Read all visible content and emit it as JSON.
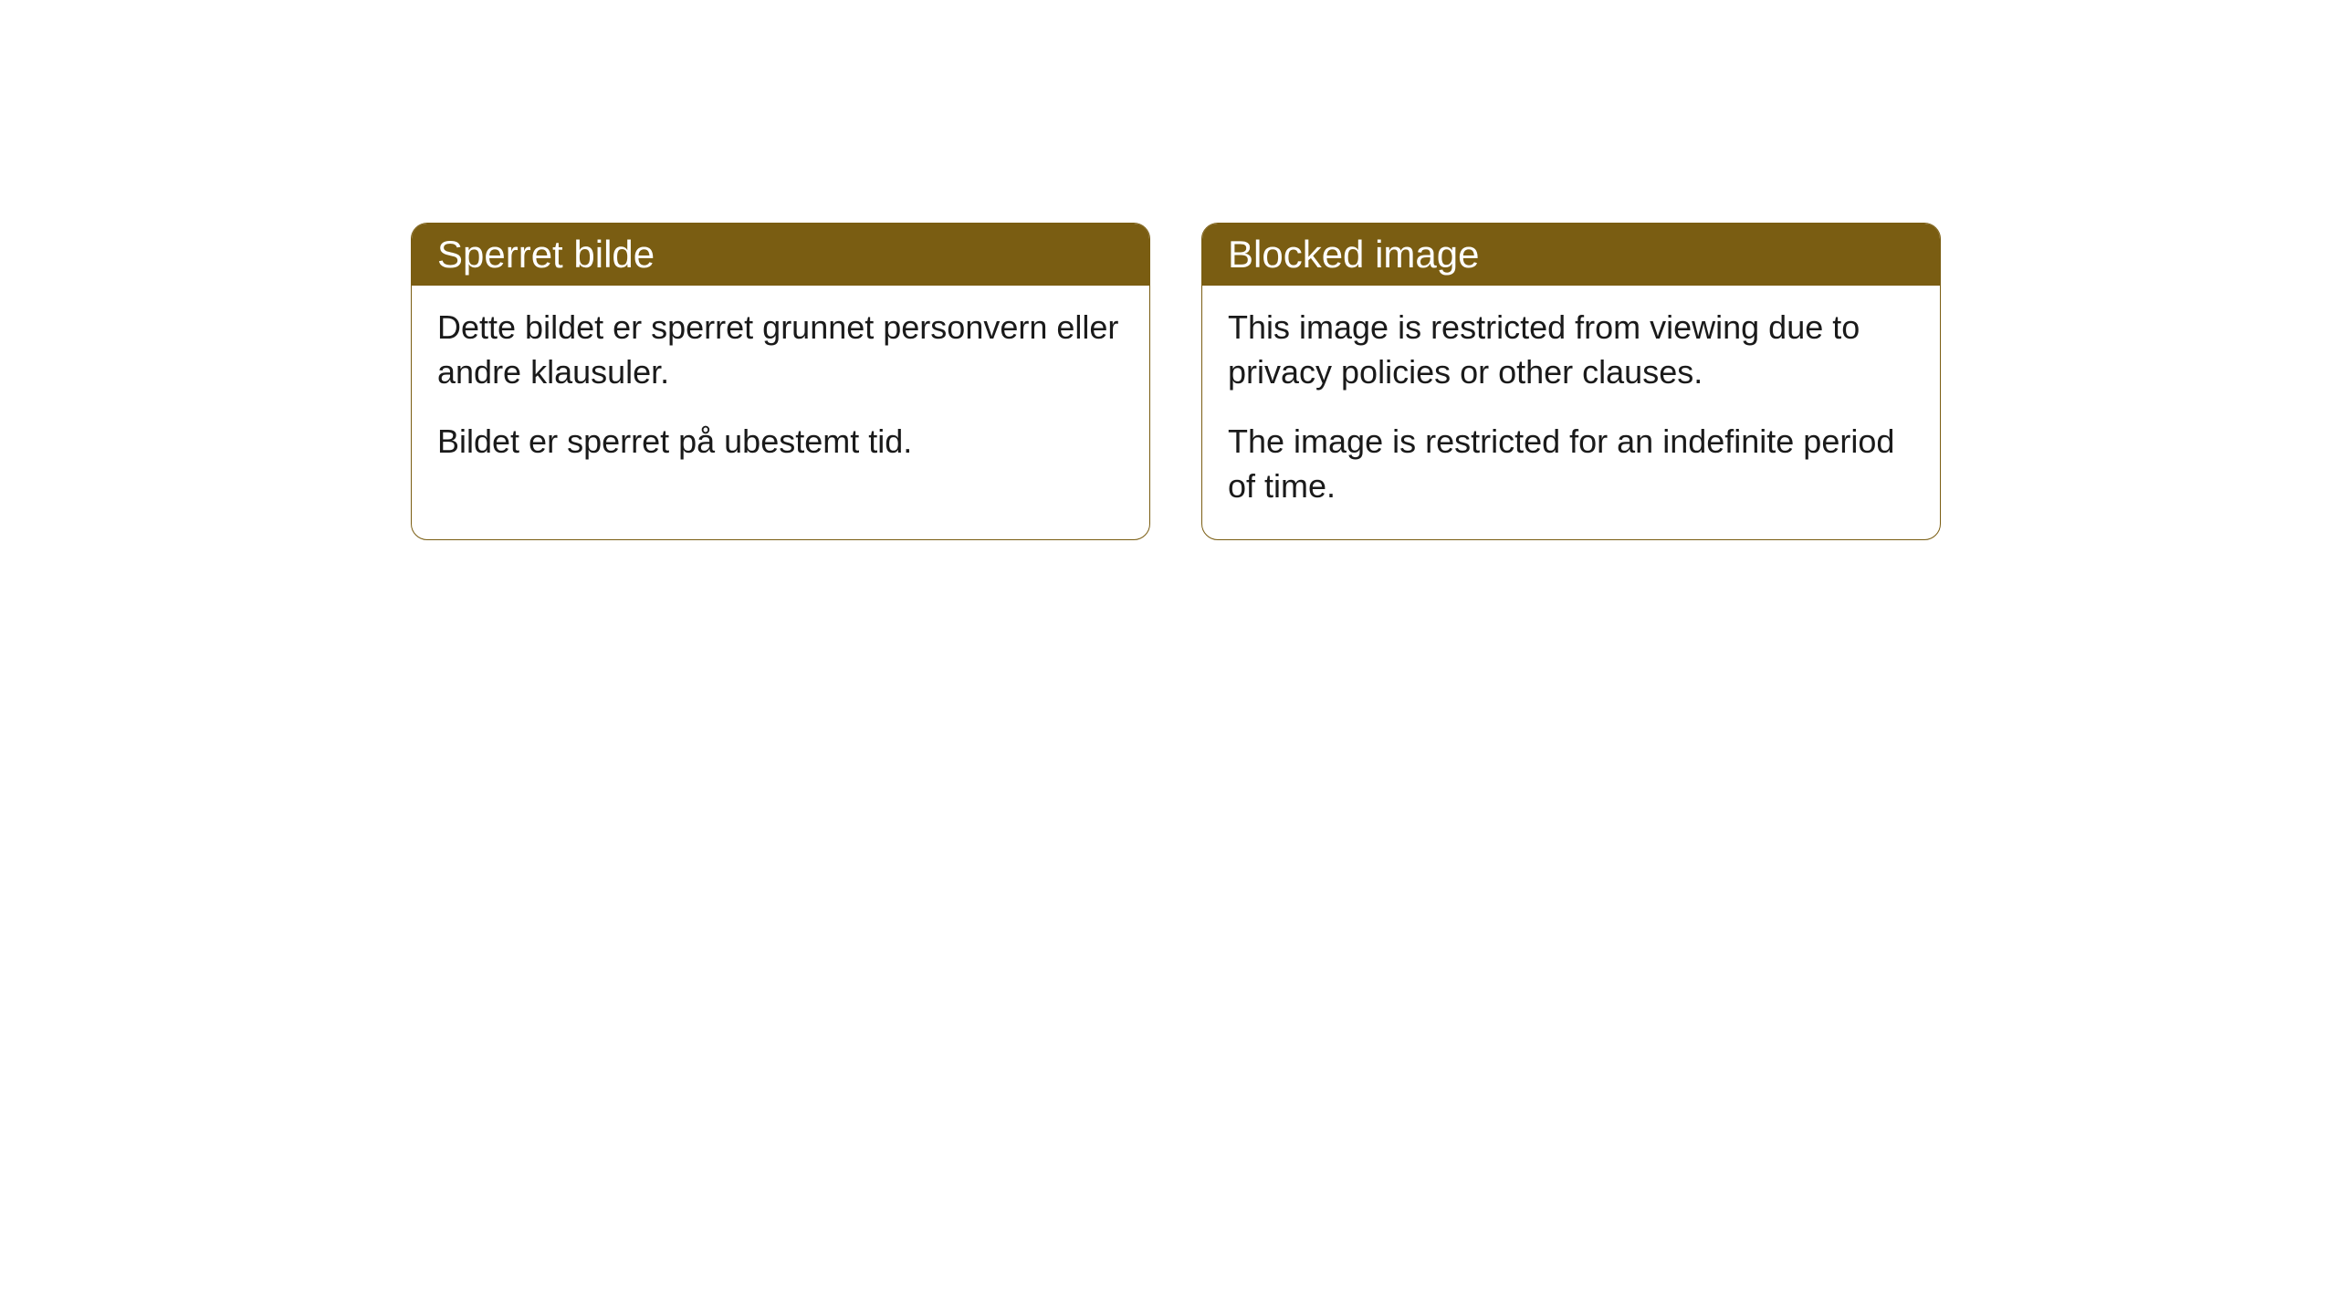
{
  "cards": [
    {
      "title": "Sperret bilde",
      "paragraph1": "Dette bildet er sperret grunnet personvern eller andre klausuler.",
      "paragraph2": "Bildet er sperret på ubestemt tid."
    },
    {
      "title": "Blocked image",
      "paragraph1": "This image is restricted from viewing due to privacy policies or other clauses.",
      "paragraph2": "The image is restricted for an indefinite period of time."
    }
  ],
  "style": {
    "header_bg": "#7a5d12",
    "header_text": "#ffffff",
    "border_color": "#7a5d12",
    "body_bg": "#ffffff",
    "body_text": "#1a1a1a",
    "border_radius": 18,
    "title_fontsize": 42,
    "body_fontsize": 36
  }
}
